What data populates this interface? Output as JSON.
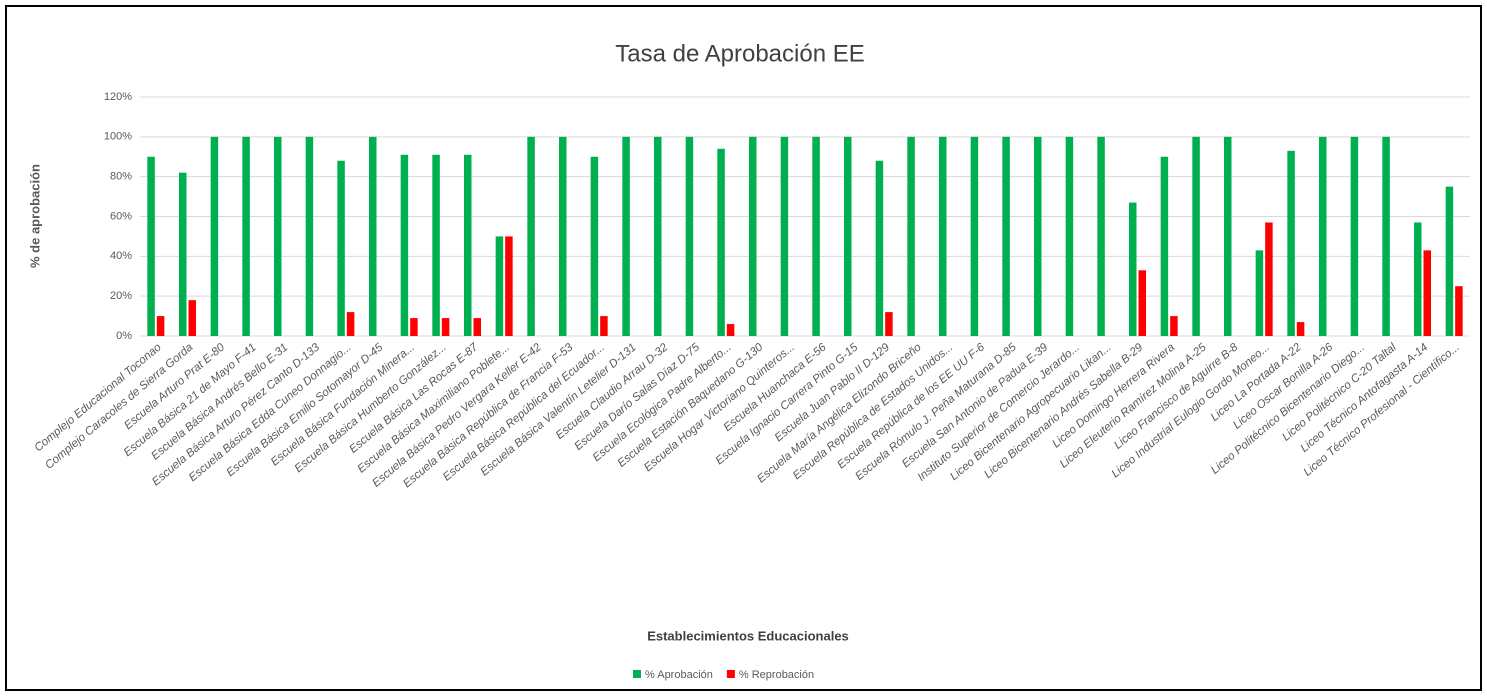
{
  "chart_data": {
    "type": "bar",
    "title": "Tasa de Aprobación EE",
    "x_label": "Establecimientos Educacionales",
    "y_label": "% de aprobación",
    "categories": [
      "Complejo Educacional Toconao",
      "Complejo Caracoles de Sierra Gorda",
      "Escuela Arturo Prat E-80",
      "Escuela Básica 21 de Mayo F-41",
      "Escuela Básica Andrés Bello E-31",
      "Escuela Básica Arturo Pérez Canto D-133",
      "Escuela Básica Edda Cuneo Donnagio...",
      "Escuela Básica Emilio Sotomayor D-45",
      "Escuela Básica Fundación Minera...",
      "Escuela Básica Humberto González...",
      "Escuela Básica Las Rocas E-87",
      "Escuela Básica Maximiliano Poblete...",
      "Escuela Básica Pedro Vergara Keller E-42",
      "Escuela Básica República de Francia F-53",
      "Escuela Básica República del Ecuador...",
      "Escuela Básica Valentín Letelier D-131",
      "Escuela Claudio Arrau D-32",
      "Escuela Darío Salas Díaz D-75",
      "Escuela Ecológica Padre Alberto...",
      "Escuela Estación Baquedano G-130",
      "Escuela Hogar Victoriano Quinteros...",
      "Escuela Huanchaca E-56",
      "Escuela Ignacio Carrera Pinto G-15",
      "Escuela Juan Pablo II D-129",
      "Escuela María Angélica Elizondo Briceño",
      "Escuela República de Estados Unidos...",
      "Escuela República de los EE UU F-6",
      "Escuela Rómulo J. Peña Maturana D-85",
      "Escuela San Antonio de Padua E-39",
      "Instituto Superior de Comercio Jerardo...",
      "Liceo Bicentenario Agropecuario Likan...",
      "Liceo Bicentenario Andrés Sabella B-29",
      "Liceo Domingo Herrera Rivera",
      "Liceo Eleuterio Ramírez Molina A-25",
      "Liceo Francisco de Aguirre B-8",
      "Liceo Industrial Eulogio Gordo Moneo...",
      "Liceo La Portada A-22",
      "Liceo Oscar Bonilla A-26",
      "Liceo Politécnico Bicentenario Diego...",
      "Liceo Politécnico C-20 Taltal",
      "Liceo Técnico Antofagasta A-14",
      "Liceo Técnico Profesional - Científico..."
    ],
    "series": [
      {
        "name": "% Aprobación",
        "color": "#00b050",
        "values": [
          90,
          82,
          100,
          100,
          100,
          100,
          88,
          100,
          91,
          91,
          91,
          50,
          100,
          100,
          90,
          100,
          100,
          100,
          94,
          100,
          100,
          100,
          100,
          88,
          100,
          100,
          100,
          100,
          100,
          100,
          100,
          67,
          90,
          100,
          100,
          43,
          93,
          100,
          100,
          100,
          57,
          75
        ]
      },
      {
        "name": "% Reprobación",
        "color": "#ff0000",
        "values": [
          10,
          18,
          0,
          0,
          0,
          0,
          12,
          0,
          9,
          9,
          9,
          50,
          0,
          0,
          10,
          0,
          0,
          0,
          6,
          0,
          0,
          0,
          0,
          12,
          0,
          0,
          0,
          0,
          0,
          0,
          0,
          33,
          10,
          0,
          0,
          57,
          7,
          0,
          0,
          0,
          43,
          25
        ]
      }
    ],
    "ylim": [
      0,
      120
    ],
    "yticks": [
      {
        "value": 0,
        "label": "0%"
      },
      {
        "value": 20,
        "label": "20%"
      },
      {
        "value": 40,
        "label": "40%"
      },
      {
        "value": 60,
        "label": "60%"
      },
      {
        "value": 80,
        "label": "80%"
      },
      {
        "value": 100,
        "label": "100%"
      },
      {
        "value": 120,
        "label": "120%"
      }
    ],
    "grid": true,
    "legend": "bottom"
  }
}
